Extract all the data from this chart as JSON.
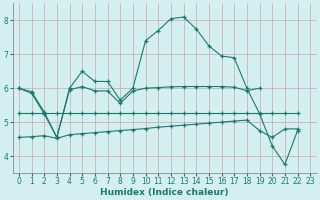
{
  "title": "",
  "xlabel": "Humidex (Indice chaleur)",
  "bg_color": "#d4efef",
  "line_color": "#1a7a6e",
  "grid_color": "#c8a8a8",
  "xlim": [
    -0.5,
    23.5
  ],
  "ylim": [
    3.5,
    8.5
  ],
  "xticks": [
    0,
    1,
    2,
    3,
    4,
    5,
    6,
    7,
    8,
    9,
    10,
    11,
    12,
    13,
    14,
    15,
    16,
    17,
    18,
    19,
    20,
    21,
    22,
    23
  ],
  "yticks": [
    4,
    5,
    6,
    7,
    8
  ],
  "line1_x": [
    0,
    1,
    2,
    3,
    4,
    5,
    6,
    7,
    8,
    9,
    10,
    11,
    12,
    13,
    14,
    15,
    16,
    17,
    18,
    19,
    20,
    21,
    22
  ],
  "line1_y": [
    6.0,
    5.9,
    5.3,
    4.55,
    6.0,
    6.5,
    6.2,
    6.2,
    5.65,
    6.0,
    7.4,
    7.7,
    8.05,
    8.1,
    7.75,
    7.25,
    6.95,
    6.9,
    6.0,
    5.25,
    4.3,
    3.75,
    4.75
  ],
  "line2_x": [
    0,
    1,
    2,
    3,
    4,
    5,
    6,
    7,
    8,
    9,
    10,
    11,
    12,
    13,
    14,
    15,
    16,
    17,
    18,
    19
  ],
  "line2_y": [
    6.0,
    5.85,
    5.25,
    4.55,
    5.95,
    6.05,
    5.92,
    5.92,
    5.55,
    5.92,
    6.0,
    6.02,
    6.04,
    6.05,
    6.05,
    6.05,
    6.05,
    6.03,
    5.93,
    6.0
  ],
  "line3_x": [
    0,
    1,
    2,
    3,
    4,
    5,
    6,
    7,
    8,
    9,
    10,
    11,
    12,
    13,
    14,
    15,
    16,
    17,
    18,
    19,
    20,
    21,
    22
  ],
  "line3_y": [
    5.28,
    5.28,
    5.28,
    5.28,
    5.28,
    5.28,
    5.28,
    5.28,
    5.28,
    5.28,
    5.28,
    5.28,
    5.28,
    5.28,
    5.28,
    5.28,
    5.28,
    5.28,
    5.28,
    5.28,
    5.28,
    5.28,
    5.28
  ],
  "line4_x": [
    0,
    1,
    2,
    3,
    4,
    5,
    6,
    7,
    8,
    9,
    10,
    11,
    12,
    13,
    14,
    15,
    16,
    17,
    18,
    19,
    20,
    21,
    22
  ],
  "line4_y": [
    4.55,
    4.57,
    4.6,
    4.52,
    4.63,
    4.66,
    4.69,
    4.72,
    4.75,
    4.78,
    4.81,
    4.85,
    4.88,
    4.91,
    4.94,
    4.97,
    5.0,
    5.03,
    5.06,
    4.75,
    4.55,
    4.8,
    4.8
  ]
}
